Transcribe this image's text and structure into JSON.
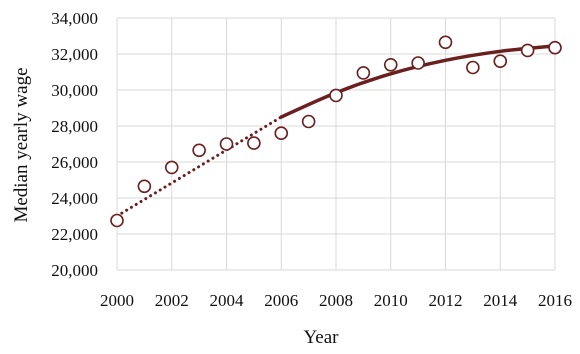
{
  "chart_data": {
    "type": "scatter",
    "title": "",
    "xlabel": "Year",
    "ylabel": "Median yearly wage",
    "xlim": [
      2000,
      2016
    ],
    "ylim": [
      20000,
      34000
    ],
    "grid": true,
    "x_ticks": [
      "2000",
      "2002",
      "2004",
      "2006",
      "2008",
      "2010",
      "2012",
      "2014",
      "2016"
    ],
    "y_ticks": [
      "20,000",
      "22,000",
      "24,000",
      "26,000",
      "28,000",
      "30,000",
      "32,000",
      "34,000"
    ],
    "series": [
      {
        "kind": "points",
        "marker": "open-circle",
        "x": [
          2000,
          2001,
          2002,
          2003,
          2004,
          2005,
          2006,
          2007,
          2008,
          2009,
          2010,
          2011,
          2012,
          2013,
          2014,
          2015,
          2016
        ],
        "y": [
          22750,
          24650,
          25700,
          26650,
          27000,
          27050,
          27600,
          28250,
          29700,
          30950,
          31400,
          31500,
          32650,
          31250,
          31600,
          32200,
          32350
        ]
      },
      {
        "kind": "trend",
        "style": "dotted",
        "x": [
          2000,
          2006
        ],
        "y": [
          23000,
          28500
        ]
      },
      {
        "kind": "trend",
        "style": "solid",
        "x": [
          2006,
          2008,
          2010,
          2012,
          2014,
          2016
        ],
        "y": [
          28500,
          29850,
          30900,
          31650,
          32150,
          32450
        ]
      }
    ],
    "colors": {
      "series": "#6b1f1f",
      "grid": "#d9d9d9",
      "text": "#111111"
    }
  }
}
